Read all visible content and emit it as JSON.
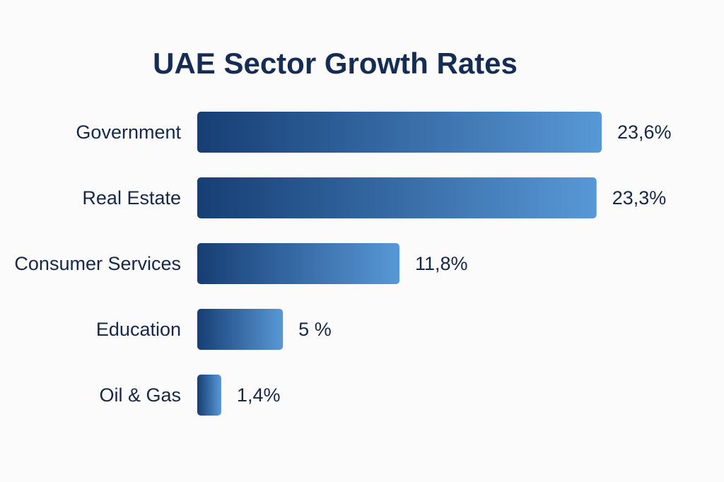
{
  "chart_data": {
    "type": "bar",
    "orientation": "horizontal",
    "title": "UAE Sector Growth Rates",
    "xlabel": "",
    "ylabel": "",
    "categories": [
      "Government",
      "Real Estate",
      "Consumer Services",
      "Education",
      "Oil & Gas"
    ],
    "values": [
      23.6,
      23.3,
      11.8,
      5,
      1.4
    ],
    "value_labels": [
      "23,6%",
      "23,3%",
      "11,8%",
      "5 %",
      "1,4%"
    ],
    "unit": "%",
    "xlim": [
      0,
      23.6
    ],
    "grid": false,
    "legend": "none",
    "colors": {
      "bar_gradient_start": "#163e74",
      "bar_gradient_end": "#5898d6",
      "text": "#15284a",
      "title": "#152c55",
      "background": "#fcfbfb"
    }
  }
}
